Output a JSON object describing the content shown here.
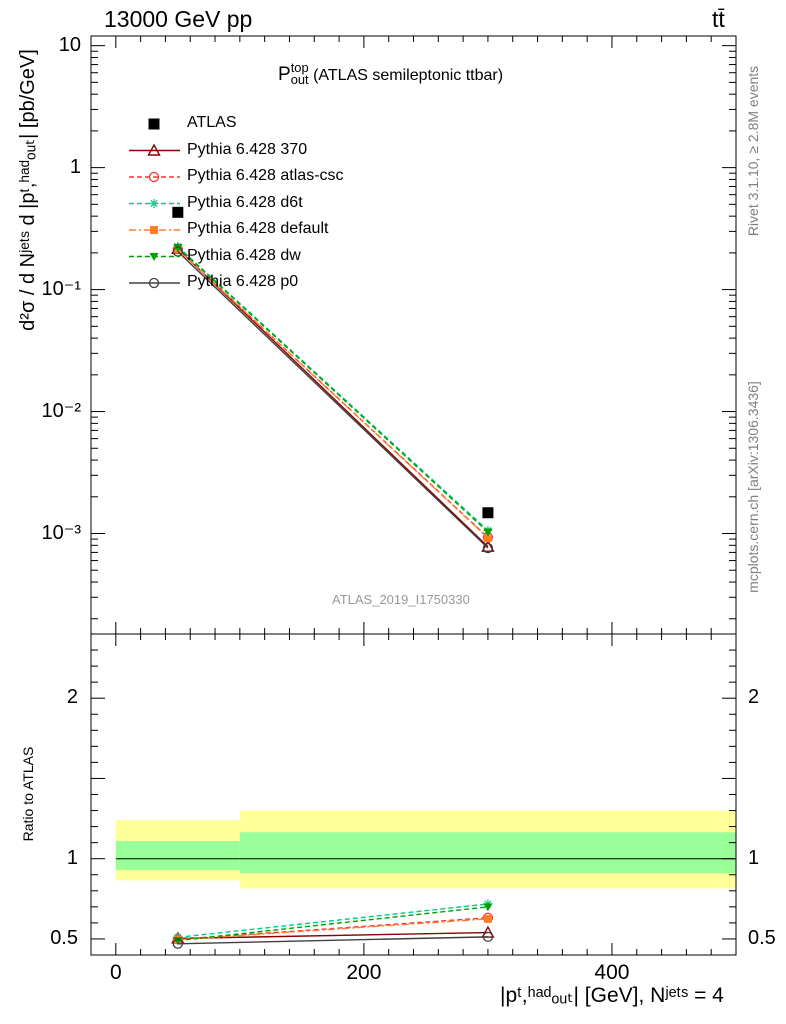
{
  "header": {
    "energy_label": "13000 GeV pp",
    "process_label": "tt̄"
  },
  "side": {
    "rivet_label": "Rivet 3.1.10, ≥ 2.8M events",
    "source_label": "mcplots.cern.ch [arXiv:1306.3436]"
  },
  "main_panel": {
    "title_sym": "P",
    "title_sup": "top",
    "title_sub": "out",
    "title_text": " (ATLAS semileptonic ttbar)",
    "ylabel": "d²σ / d Nʲᵉᵗˢ d |pᵗ,ʰᵃᵈₒᵤₜ| [pb/GeV]",
    "watermark": "ATLAS_2019_I1750330"
  },
  "ratio_panel": {
    "ylabel": "Ratio to ATLAS"
  },
  "xaxis_label": "|pᵗ,ʰᵃᵈₒᵤₜ| [GeV], Nʲᵉᵗˢ = 4",
  "colors": {
    "data": "#000000",
    "p370": "#8b0000",
    "atlas_csc": "#ff3333",
    "d6t": "#00cc88",
    "default": "#ff7f2a",
    "dw": "#00a000",
    "p0": "#404040",
    "band_inner": "#99ff99",
    "band_outer": "#ffff99"
  },
  "chart_data": [
    {
      "type": "scatter",
      "yscale": "log",
      "xlim": [
        -20,
        500
      ],
      "ylim": [
        0.00015,
        12
      ],
      "yticks": [
        {
          "value": 10,
          "label": "10"
        },
        {
          "value": 1,
          "label": "1"
        },
        {
          "value": 0.1,
          "label": "10⁻¹"
        },
        {
          "value": 0.01,
          "label": "10⁻²"
        },
        {
          "value": 0.001,
          "label": "10⁻³"
        }
      ],
      "legend_position": "top-left",
      "series": [
        {
          "name": "ATLAS",
          "x": [
            50,
            300
          ],
          "y": [
            0.43,
            0.00148
          ],
          "style": "data"
        },
        {
          "name": "Pythia 6.428 370",
          "x": [
            50,
            300
          ],
          "y": [
            0.216,
            0.00078
          ],
          "style": "p370"
        },
        {
          "name": "Pythia 6.428 atlas-csc",
          "x": [
            50,
            300
          ],
          "y": [
            0.214,
            0.00093
          ],
          "style": "atlas_csc"
        },
        {
          "name": "Pythia 6.428 d6t",
          "x": [
            50,
            300
          ],
          "y": [
            0.225,
            0.00106
          ],
          "style": "d6t"
        },
        {
          "name": "Pythia 6.428 default",
          "x": [
            50,
            300
          ],
          "y": [
            0.214,
            0.00092
          ],
          "style": "default"
        },
        {
          "name": "Pythia 6.428 dw",
          "x": [
            50,
            300
          ],
          "y": [
            0.222,
            0.00103
          ],
          "style": "dw"
        },
        {
          "name": "Pythia 6.428 p0",
          "x": [
            50,
            300
          ],
          "y": [
            0.205,
            0.00076
          ],
          "style": "p0"
        }
      ]
    },
    {
      "type": "line",
      "xlim": [
        -20,
        500
      ],
      "ylim": [
        0.4,
        2.4
      ],
      "xticks": [
        0,
        200,
        400
      ],
      "yticks": [
        0.5,
        1,
        2
      ],
      "bands": [
        {
          "x_range": [
            0,
            100
          ],
          "inner": [
            0.93,
            1.11
          ],
          "outer": [
            0.865,
            1.24
          ]
        },
        {
          "x_range": [
            100,
            500
          ],
          "inner": [
            0.91,
            1.165
          ],
          "outer": [
            0.815,
            1.3
          ]
        }
      ],
      "series": [
        {
          "name": "Pythia 6.428 370",
          "x": [
            50,
            300
          ],
          "y": [
            0.503,
            0.54
          ]
        },
        {
          "name": "Pythia 6.428 atlas-csc",
          "x": [
            50,
            300
          ],
          "y": [
            0.498,
            0.632
          ]
        },
        {
          "name": "Pythia 6.428 d6t",
          "x": [
            50,
            300
          ],
          "y": [
            0.51,
            0.718
          ]
        },
        {
          "name": "Pythia 6.428 default",
          "x": [
            50,
            300
          ],
          "y": [
            0.495,
            0.625
          ]
        },
        {
          "name": "Pythia 6.428 dw",
          "x": [
            50,
            300
          ],
          "y": [
            0.49,
            0.7
          ]
        },
        {
          "name": "Pythia 6.428 p0",
          "x": [
            50,
            300
          ],
          "y": [
            0.47,
            0.513
          ]
        }
      ]
    }
  ]
}
